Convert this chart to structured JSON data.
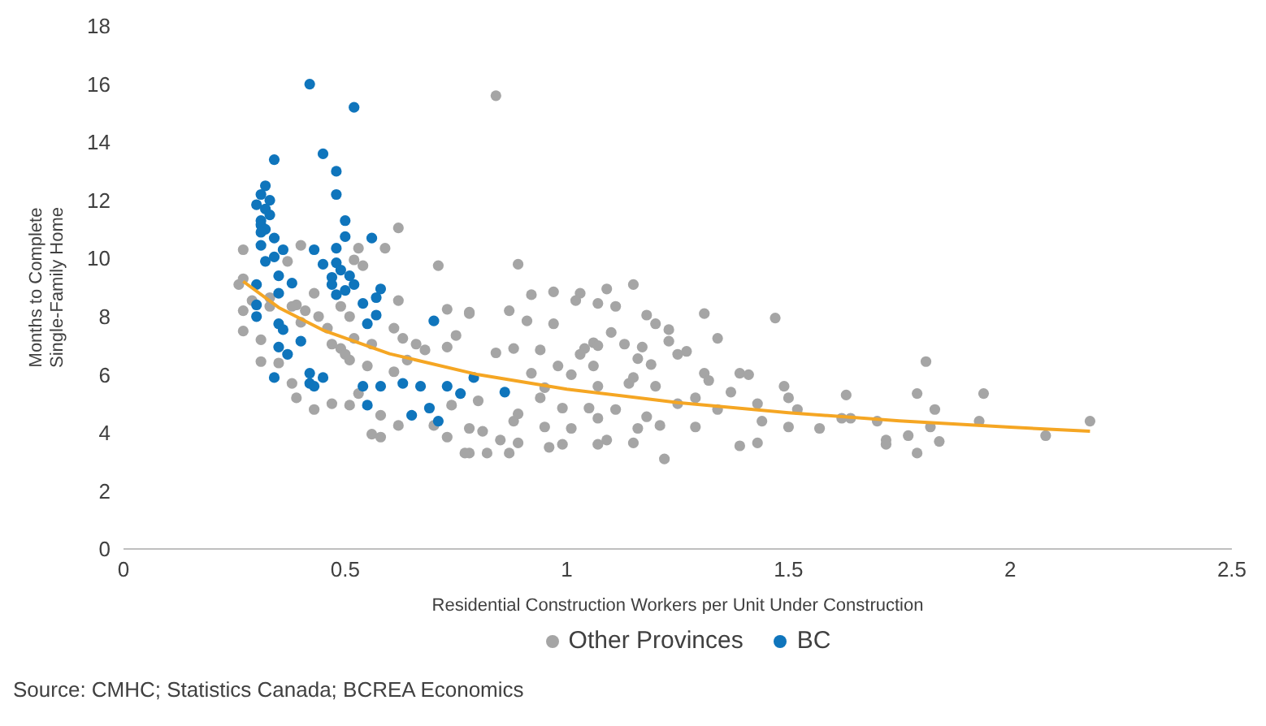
{
  "chart_data": {
    "type": "scatter",
    "xlabel": "Residential Construction Workers per Unit Under Construction",
    "ylabel": "Months to Complete\nSingle-Family Home",
    "xlim": [
      0,
      2.5
    ],
    "xticks": [
      0,
      0.5,
      1,
      1.5,
      2,
      2.5
    ],
    "ylim": [
      0,
      18
    ],
    "yticks": [
      0,
      2,
      4,
      6,
      8,
      10,
      12,
      14,
      16,
      18
    ],
    "grid": false,
    "legend": "bottom",
    "marker": "circle",
    "annotations": [
      "Source: CMHC; Statistics Canada; BCREA Economics"
    ],
    "series": [
      {
        "name": "Other Provinces",
        "color": "#a5a5a5",
        "x": [
          0.84,
          0.89,
          1.15,
          1.09,
          0.97,
          0.92,
          1.03,
          1.02,
          1.07,
          1.11,
          0.87,
          1.31,
          1.47,
          1.18,
          1.2,
          1.23,
          0.91,
          0.97,
          1.34,
          1.23,
          1.1,
          1.06,
          1.07,
          1.13,
          1.17,
          1.27,
          1.25,
          1.04,
          0.94,
          0.88,
          0.84,
          1.16,
          1.19,
          1.03,
          0.98,
          1.06,
          1.31,
          1.39,
          1.41,
          1.32,
          1.01,
          1.15,
          0.92,
          1.2,
          1.14,
          1.07,
          0.95,
          1.49,
          1.37,
          1.5,
          1.63,
          1.29,
          1.25,
          1.43,
          1.52,
          1.62,
          1.64,
          1.57,
          1.5,
          1.44,
          1.34,
          1.29,
          1.21,
          1.18,
          1.07,
          1.05,
          1.11,
          0.99,
          1.01,
          0.95,
          1.16,
          1.15,
          1.09,
          1.07,
          0.99,
          0.96,
          1.39,
          1.43,
          1.22,
          0.89,
          0.87,
          0.82,
          0.85,
          0.78,
          0.81,
          0.88,
          0.94,
          0.8,
          0.89,
          1.81,
          1.79,
          1.94,
          1.83,
          1.93,
          1.7,
          1.82,
          1.77,
          1.72,
          1.72,
          1.84,
          1.79,
          2.08,
          2.18,
          0.62,
          0.71,
          0.27,
          0.4,
          0.59,
          0.53,
          0.62,
          0.27,
          0.26,
          0.37,
          0.52,
          0.54,
          0.43,
          0.33,
          0.39,
          0.73,
          0.78,
          0.27,
          0.31,
          0.31,
          0.27,
          0.38,
          0.39,
          0.43,
          0.47,
          0.49,
          0.5,
          0.47,
          0.51,
          0.46,
          0.44,
          0.41,
          0.4,
          0.51,
          0.53,
          0.58,
          0.62,
          0.56,
          0.58,
          0.61,
          0.64,
          0.66,
          0.68,
          0.73,
          0.75,
          0.78,
          0.74,
          0.78,
          0.77,
          0.73,
          0.7,
          0.55,
          0.56,
          0.35,
          0.29,
          0.33,
          0.38,
          0.49,
          0.51,
          0.61,
          0.63,
          0.52
        ],
        "values": [
          15.6,
          9.8,
          9.1,
          8.95,
          8.85,
          8.75,
          8.8,
          8.55,
          8.45,
          8.35,
          8.2,
          8.1,
          7.95,
          8.05,
          7.75,
          7.55,
          7.85,
          7.75,
          7.25,
          7.15,
          7.45,
          7.1,
          7.0,
          7.05,
          6.95,
          6.8,
          6.7,
          6.9,
          6.85,
          6.9,
          6.75,
          6.55,
          6.35,
          6.7,
          6.3,
          6.3,
          6.05,
          6.05,
          6.0,
          5.8,
          6.0,
          5.9,
          6.05,
          5.6,
          5.7,
          5.6,
          5.55,
          5.6,
          5.4,
          5.2,
          5.3,
          5.2,
          5.0,
          5.0,
          4.8,
          4.5,
          4.5,
          4.15,
          4.2,
          4.4,
          4.8,
          4.2,
          4.25,
          4.55,
          4.5,
          4.85,
          4.8,
          4.85,
          4.15,
          4.2,
          4.15,
          3.65,
          3.75,
          3.6,
          3.6,
          3.5,
          3.55,
          3.65,
          3.1,
          3.65,
          3.3,
          3.3,
          3.75,
          3.3,
          4.05,
          4.4,
          5.2,
          5.1,
          4.65,
          6.45,
          5.35,
          5.35,
          4.8,
          4.4,
          4.4,
          4.2,
          3.9,
          3.75,
          3.6,
          3.7,
          3.3,
          3.9,
          4.4,
          11.05,
          9.75,
          10.3,
          10.45,
          10.35,
          10.35,
          8.55,
          9.3,
          9.1,
          9.9,
          9.95,
          9.75,
          8.8,
          8.65,
          8.4,
          8.25,
          8.15,
          7.5,
          7.2,
          6.45,
          8.2,
          5.7,
          5.2,
          4.8,
          5.0,
          6.9,
          6.7,
          7.05,
          6.5,
          7.6,
          8.0,
          8.2,
          7.8,
          4.95,
          5.35,
          4.6,
          4.25,
          3.95,
          3.85,
          6.1,
          6.5,
          7.05,
          6.85,
          6.95,
          7.35,
          8.1,
          4.95,
          4.15,
          3.3,
          3.85,
          4.25,
          6.3,
          7.05,
          6.4,
          8.55,
          8.35,
          8.35,
          8.35,
          8.0,
          7.6,
          7.25,
          7.25
        ]
      },
      {
        "name": "BC",
        "color": "#0f75bc",
        "x": [
          0.42,
          0.52,
          0.34,
          0.45,
          0.48,
          0.48,
          0.32,
          0.31,
          0.33,
          0.3,
          0.32,
          0.33,
          0.31,
          0.31,
          0.32,
          0.31,
          0.5,
          0.5,
          0.56,
          0.34,
          0.31,
          0.36,
          0.43,
          0.48,
          0.34,
          0.32,
          0.45,
          0.48,
          0.49,
          0.51,
          0.35,
          0.47,
          0.47,
          0.52,
          0.38,
          0.3,
          0.58,
          0.5,
          0.48,
          0.35,
          0.57,
          0.54,
          0.3,
          0.3,
          0.35,
          0.57,
          0.55,
          0.36,
          0.4,
          0.7,
          0.35,
          0.37,
          0.34,
          0.42,
          0.45,
          0.42,
          0.43,
          0.54,
          0.58,
          0.63,
          0.67,
          0.73,
          0.76,
          0.79,
          0.69,
          0.55,
          0.65,
          0.71,
          0.86
        ],
        "values": [
          16.0,
          15.2,
          13.4,
          13.6,
          13.0,
          12.2,
          12.5,
          12.2,
          12.0,
          11.85,
          11.7,
          11.5,
          11.3,
          11.15,
          11.0,
          10.9,
          11.3,
          10.75,
          10.7,
          10.7,
          10.45,
          10.3,
          10.3,
          10.35,
          10.05,
          9.9,
          9.8,
          9.85,
          9.6,
          9.4,
          9.4,
          9.35,
          9.1,
          9.1,
          9.15,
          9.1,
          8.95,
          8.9,
          8.75,
          8.8,
          8.65,
          8.45,
          8.4,
          8.0,
          7.75,
          8.05,
          7.75,
          7.55,
          7.15,
          7.85,
          6.95,
          6.7,
          5.9,
          6.05,
          5.9,
          5.7,
          5.6,
          5.6,
          5.6,
          5.7,
          5.6,
          5.6,
          5.35,
          5.9,
          4.85,
          4.95,
          4.6,
          4.4,
          5.4
        ]
      },
      {
        "type": "line",
        "color": "#f5a623",
        "marker": "none",
        "x": [
          0.27,
          0.35,
          0.45,
          0.6,
          0.8,
          1.0,
          1.25,
          1.5,
          1.75,
          2.0,
          2.18
        ],
        "values": [
          9.21,
          8.31,
          7.53,
          6.72,
          6.0,
          5.5,
          5.04,
          4.69,
          4.41,
          4.19,
          4.05
        ]
      }
    ]
  }
}
